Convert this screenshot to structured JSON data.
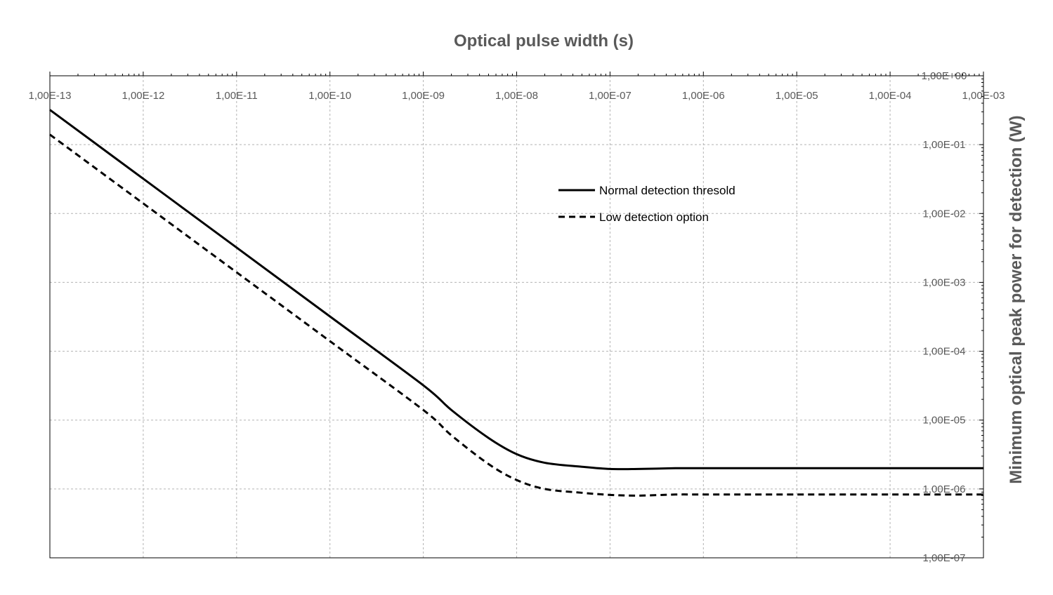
{
  "chart_data": {
    "type": "line",
    "xlabel": "Optical pulse width (s)",
    "ylabel": "Minimum optical peak power for detection   (W)",
    "x_scale": "log",
    "y_scale": "log",
    "xlim": [
      1e-13,
      0.001
    ],
    "ylim": [
      1e-07,
      1
    ],
    "x_ticks": [
      {
        "value": 1e-13,
        "label": "1,00E-13"
      },
      {
        "value": 1e-12,
        "label": "1,00E-12"
      },
      {
        "value": 1e-11,
        "label": "1,00E-11"
      },
      {
        "value": 1e-10,
        "label": "1,00E-10"
      },
      {
        "value": 1e-09,
        "label": "1,00E-09"
      },
      {
        "value": 1e-08,
        "label": "1,00E-08"
      },
      {
        "value": 1e-07,
        "label": "1,00E-07"
      },
      {
        "value": 1e-06,
        "label": "1,00E-06"
      },
      {
        "value": 1e-05,
        "label": "1,00E-05"
      },
      {
        "value": 0.0001,
        "label": "1,00E-04"
      },
      {
        "value": 0.001,
        "label": "1,00E-03"
      }
    ],
    "y_ticks": [
      {
        "value": 1,
        "label": "1,00E+00"
      },
      {
        "value": 0.1,
        "label": "1,00E-01"
      },
      {
        "value": 0.01,
        "label": "1,00E-02"
      },
      {
        "value": 0.001,
        "label": "1,00E-03"
      },
      {
        "value": 0.0001,
        "label": "1,00E-04"
      },
      {
        "value": 1e-05,
        "label": "1,00E-05"
      },
      {
        "value": 1e-06,
        "label": "1,00E-06"
      },
      {
        "value": 1e-07,
        "label": "1,00E-07"
      }
    ],
    "grid": true,
    "x_axis_position": "top",
    "y_axis_position": "right",
    "legend_position": "upper-middle-right",
    "series": [
      {
        "name": "Normal detection thresold",
        "style": "solid",
        "color": "#000000",
        "x": [
          1e-13,
          1e-12,
          1e-11,
          1e-10,
          1e-09,
          2e-09,
          5e-09,
          1e-08,
          2e-08,
          5e-08,
          1e-07,
          2e-07,
          5e-07,
          1e-06,
          1e-05,
          0.0001,
          0.001
        ],
        "y": [
          0.32,
          0.032,
          0.0032,
          0.00032,
          3.2e-05,
          1.4e-05,
          5.5e-06,
          3.2e-06,
          2.4e-06,
          2.1e-06,
          1.95e-06,
          1.95e-06,
          2e-06,
          2e-06,
          2e-06,
          2e-06,
          2e-06
        ]
      },
      {
        "name": "Low detection option",
        "style": "dashed",
        "color": "#000000",
        "x": [
          1e-13,
          1e-12,
          1e-11,
          1e-10,
          1e-09,
          2e-09,
          5e-09,
          1e-08,
          2e-08,
          5e-08,
          1e-07,
          2e-07,
          5e-07,
          1e-06,
          1e-05,
          0.0001,
          0.001
        ],
        "y": [
          0.14,
          0.014,
          0.0014,
          0.00014,
          1.4e-05,
          6e-06,
          2.3e-06,
          1.35e-06,
          1e-06,
          8.8e-07,
          8.2e-07,
          8e-07,
          8.3e-07,
          8.3e-07,
          8.3e-07,
          8.3e-07,
          8.3e-07
        ]
      }
    ]
  }
}
